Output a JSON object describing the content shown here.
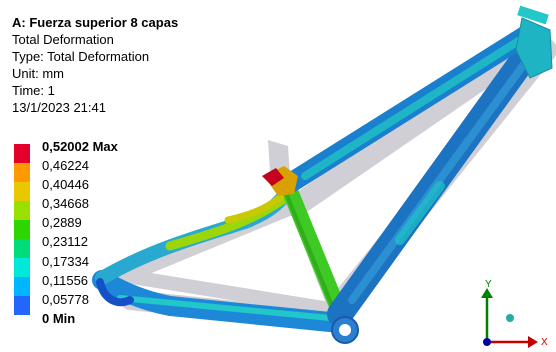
{
  "info": {
    "title": "A: Fuerza superior 8 capas",
    "result": "Total Deformation",
    "type": "Type: Total Deformation",
    "unit": "Unit: mm",
    "time": "Time: 1",
    "date": "13/1/2023 21:41"
  },
  "legend": {
    "max_label": "0,52002 Max",
    "labels": [
      "0,46224",
      "0,40446",
      "0,34668",
      "0,2889",
      "0,23112",
      "0,17334",
      "0,11556",
      "0,05778"
    ],
    "min_label": "0 Min",
    "colors": [
      "#e4002a",
      "#ff9900",
      "#e8c800",
      "#99e000",
      "#2ed600",
      "#00dc77",
      "#00e8d8",
      "#00b7ff",
      "#2266ff",
      "#0010d8"
    ]
  },
  "triad": {
    "x_label": "X",
    "y_label": "Y",
    "x_color": "#c40000",
    "y_color": "#008000",
    "z_color": "#0000a0"
  }
}
